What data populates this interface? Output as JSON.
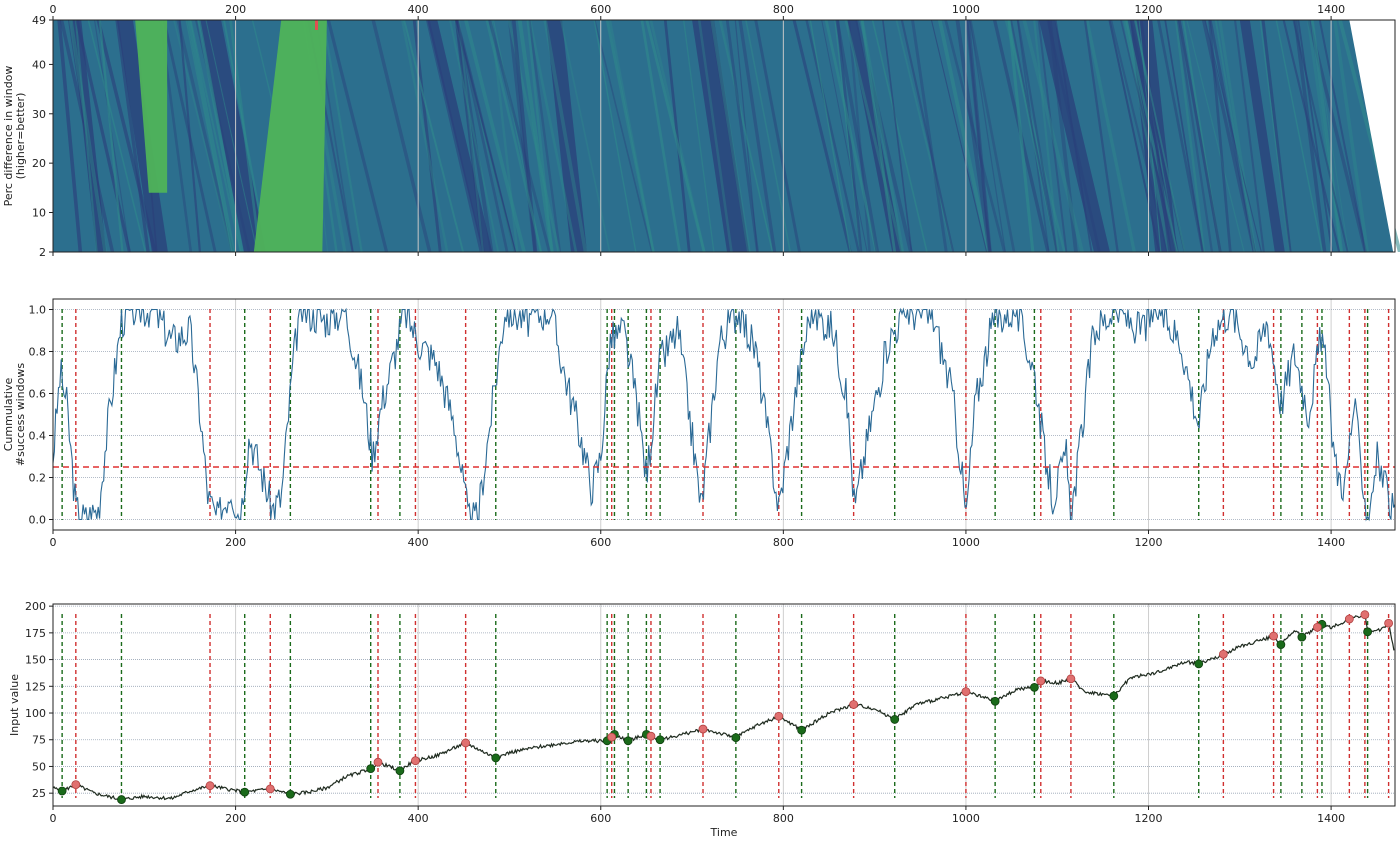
{
  "colors": {
    "heat_dark": "#2a3f7a",
    "heat_mid": "#2c6f8e",
    "heat_teal": "#2f8a8c",
    "heat_green": "#4fb35a",
    "heat_red": "#e05050",
    "line_blue": "#2b6a96",
    "buy_green": "#1a6a1a",
    "sell_red": "#d03030",
    "price_line": "#1f2b1f",
    "threshold_red": "#e03030"
  },
  "chart_data": [
    {
      "type": "heatmap",
      "ylabel_lines": [
        "Perc difference in window",
        "(higher=better)"
      ],
      "xlabel": "",
      "xlim": [
        0,
        1470
      ],
      "ylim": [
        2,
        49
      ],
      "x_ticks": [
        "0",
        "200",
        "400",
        "600",
        "800",
        "1000",
        "1200",
        "1400"
      ],
      "x_tick_values": [
        0,
        200,
        400,
        600,
        800,
        1000,
        1200,
        1400
      ],
      "y_ticks": [
        "2",
        "10",
        "20",
        "30",
        "40",
        "49"
      ],
      "y_tick_values": [
        2,
        10,
        20,
        30,
        40,
        49
      ],
      "x_ticks_on_top": true,
      "grid": true,
      "green_bands": [
        {
          "x_start_bottom": 220,
          "x_start_top": 250,
          "x_end_bottom": 295,
          "x_end_top": 300
        },
        {
          "x_start_bottom": 105,
          "x_start_top": 90,
          "x_end_bottom": 125,
          "x_end_top": 125
        }
      ],
      "dark_bands_x": [
        20,
        70,
        160,
        410,
        540,
        700,
        870,
        1080,
        1180,
        1300
      ]
    },
    {
      "type": "line",
      "ylabel_lines": [
        "Cummulative",
        "#success windows"
      ],
      "xlabel": "",
      "xlim": [
        0,
        1470
      ],
      "ylim": [
        -0.05,
        1.05
      ],
      "x_ticks": [
        "0",
        "200",
        "400",
        "600",
        "800",
        "1000",
        "1200",
        "1400"
      ],
      "x_tick_values": [
        0,
        200,
        400,
        600,
        800,
        1000,
        1200,
        1400
      ],
      "y_ticks": [
        "0.0",
        "0.2",
        "0.4",
        "0.6",
        "0.8",
        "1.0"
      ],
      "y_tick_values": [
        0.0,
        0.2,
        0.4,
        0.6,
        0.8,
        1.0
      ],
      "threshold": 0.25,
      "grid": true,
      "anchors": [
        [
          0,
          0.3
        ],
        [
          8,
          0.7
        ],
        [
          15,
          0.55
        ],
        [
          25,
          0.05
        ],
        [
          35,
          0.0
        ],
        [
          50,
          0.05
        ],
        [
          60,
          0.45
        ],
        [
          75,
          0.95
        ],
        [
          90,
          1.0
        ],
        [
          110,
          1.0
        ],
        [
          130,
          0.85
        ],
        [
          150,
          0.9
        ],
        [
          160,
          0.55
        ],
        [
          170,
          0.1
        ],
        [
          180,
          0.0
        ],
        [
          195,
          0.15
        ],
        [
          205,
          0.0
        ],
        [
          215,
          0.4
        ],
        [
          230,
          0.2
        ],
        [
          240,
          0.05
        ],
        [
          250,
          0.1
        ],
        [
          262,
          0.7
        ],
        [
          270,
          1.0
        ],
        [
          300,
          0.95
        ],
        [
          320,
          1.0
        ],
        [
          340,
          0.6
        ],
        [
          350,
          0.3
        ],
        [
          360,
          0.55
        ],
        [
          375,
          0.8
        ],
        [
          385,
          1.0
        ],
        [
          400,
          0.85
        ],
        [
          420,
          0.75
        ],
        [
          440,
          0.45
        ],
        [
          450,
          0.15
        ],
        [
          455,
          0.0
        ],
        [
          465,
          0.0
        ],
        [
          480,
          0.5
        ],
        [
          495,
          1.0
        ],
        [
          520,
          0.95
        ],
        [
          545,
          1.0
        ],
        [
          560,
          0.7
        ],
        [
          575,
          0.45
        ],
        [
          590,
          0.15
        ],
        [
          600,
          0.3
        ],
        [
          610,
          0.85
        ],
        [
          625,
          0.9
        ],
        [
          640,
          0.55
        ],
        [
          650,
          0.2
        ],
        [
          665,
          0.75
        ],
        [
          685,
          0.9
        ],
        [
          700,
          0.4
        ],
        [
          710,
          0.05
        ],
        [
          730,
          0.85
        ],
        [
          750,
          1.0
        ],
        [
          770,
          0.8
        ],
        [
          785,
          0.35
        ],
        [
          795,
          0.05
        ],
        [
          815,
          0.65
        ],
        [
          830,
          1.0
        ],
        [
          855,
          0.9
        ],
        [
          870,
          0.55
        ],
        [
          878,
          0.05
        ],
        [
          895,
          0.45
        ],
        [
          915,
          0.85
        ],
        [
          935,
          1.0
        ],
        [
          965,
          0.95
        ],
        [
          985,
          0.6
        ],
        [
          995,
          0.25
        ],
        [
          1000,
          0.0
        ],
        [
          1010,
          0.55
        ],
        [
          1030,
          0.95
        ],
        [
          1055,
          1.0
        ],
        [
          1075,
          0.7
        ],
        [
          1085,
          0.35
        ],
        [
          1095,
          0.1
        ],
        [
          1110,
          0.3
        ],
        [
          1115,
          0.0
        ],
        [
          1125,
          0.35
        ],
        [
          1140,
          0.9
        ],
        [
          1165,
          1.0
        ],
        [
          1190,
          0.9
        ],
        [
          1210,
          1.0
        ],
        [
          1235,
          0.85
        ],
        [
          1255,
          0.45
        ],
        [
          1270,
          0.9
        ],
        [
          1290,
          1.0
        ],
        [
          1315,
          0.75
        ],
        [
          1330,
          0.95
        ],
        [
          1345,
          0.55
        ],
        [
          1360,
          0.8
        ],
        [
          1375,
          0.5
        ],
        [
          1390,
          0.9
        ],
        [
          1405,
          0.25
        ],
        [
          1415,
          0.15
        ],
        [
          1425,
          0.55
        ],
        [
          1440,
          0.0
        ],
        [
          1450,
          0.3
        ],
        [
          1462,
          0.1
        ],
        [
          1470,
          0.0
        ]
      ]
    },
    {
      "type": "line",
      "ylabel_lines": [
        "Input value"
      ],
      "xlabel": "Time",
      "xlim": [
        0,
        1470
      ],
      "ylim": [
        13,
        202
      ],
      "x_ticks": [
        "0",
        "200",
        "400",
        "600",
        "800",
        "1000",
        "1200",
        "1400"
      ],
      "x_tick_values": [
        0,
        200,
        400,
        600,
        800,
        1000,
        1200,
        1400
      ],
      "y_ticks": [
        "25",
        "50",
        "75",
        "100",
        "125",
        "150",
        "175",
        "200"
      ],
      "y_tick_values": [
        25,
        50,
        75,
        100,
        125,
        150,
        175,
        200
      ],
      "grid": true,
      "anchors": [
        [
          0,
          30
        ],
        [
          10,
          27
        ],
        [
          25,
          33
        ],
        [
          45,
          25
        ],
        [
          75,
          19
        ],
        [
          100,
          22
        ],
        [
          130,
          20
        ],
        [
          150,
          27
        ],
        [
          172,
          32
        ],
        [
          190,
          29
        ],
        [
          210,
          26
        ],
        [
          238,
          29
        ],
        [
          260,
          24
        ],
        [
          280,
          26
        ],
        [
          300,
          30
        ],
        [
          320,
          40
        ],
        [
          348,
          48
        ],
        [
          356,
          54
        ],
        [
          380,
          46
        ],
        [
          395,
          55
        ],
        [
          420,
          60
        ],
        [
          452,
          72
        ],
        [
          485,
          58
        ],
        [
          500,
          63
        ],
        [
          530,
          68
        ],
        [
          560,
          72
        ],
        [
          585,
          74
        ],
        [
          608,
          74
        ],
        [
          615,
          80
        ],
        [
          630,
          74
        ],
        [
          650,
          80
        ],
        [
          665,
          75
        ],
        [
          690,
          80
        ],
        [
          712,
          85
        ],
        [
          748,
          77
        ],
        [
          770,
          88
        ],
        [
          795,
          97
        ],
        [
          820,
          84
        ],
        [
          850,
          100
        ],
        [
          877,
          108
        ],
        [
          900,
          104
        ],
        [
          922,
          94
        ],
        [
          945,
          108
        ],
        [
          975,
          114
        ],
        [
          1000,
          120
        ],
        [
          1032,
          111
        ],
        [
          1055,
          122
        ],
        [
          1075,
          124
        ],
        [
          1082,
          130
        ],
        [
          1100,
          128
        ],
        [
          1115,
          132
        ],
        [
          1130,
          120
        ],
        [
          1162,
          116
        ],
        [
          1180,
          133
        ],
        [
          1210,
          138
        ],
        [
          1240,
          148
        ],
        [
          1255,
          146
        ],
        [
          1282,
          155
        ],
        [
          1300,
          162
        ],
        [
          1337,
          172
        ],
        [
          1345,
          164
        ],
        [
          1360,
          178
        ],
        [
          1368,
          171
        ],
        [
          1390,
          183
        ],
        [
          1400,
          180
        ],
        [
          1420,
          188
        ],
        [
          1437,
          192
        ],
        [
          1440,
          176
        ],
        [
          1450,
          176
        ],
        [
          1463,
          184
        ],
        [
          1470,
          155
        ]
      ]
    }
  ],
  "buy_markers_x": [
    10,
    75,
    210,
    260,
    348,
    380,
    485,
    607,
    615,
    630,
    650,
    665,
    748,
    820,
    922,
    1032,
    1075,
    1162,
    1255,
    1345,
    1368,
    1390,
    1440
  ],
  "sell_markers_x": [
    25,
    172,
    238,
    356,
    397,
    452,
    612,
    655,
    712,
    795,
    877,
    1000,
    1082,
    1115,
    1282,
    1337,
    1385,
    1420,
    1437,
    1463
  ],
  "grid_minor_y_mid": [
    0.2
  ],
  "tick_labels_x_bottom_shared": [
    "0",
    "200",
    "400",
    "600",
    "800",
    "1000",
    "1200",
    "1400"
  ]
}
